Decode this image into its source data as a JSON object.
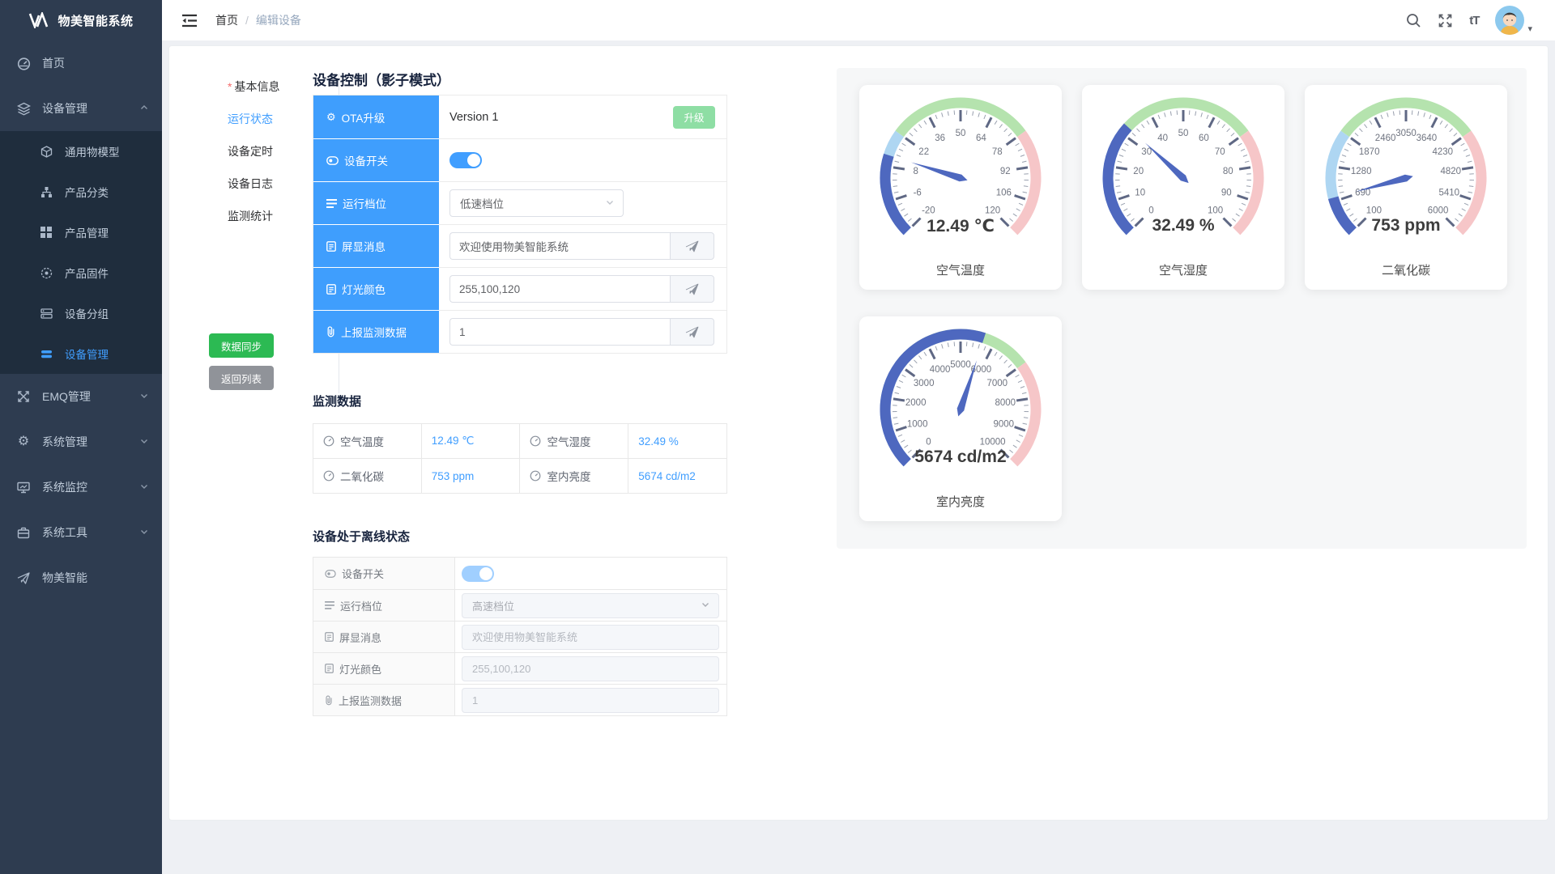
{
  "app": {
    "title": "物美智能系统"
  },
  "header": {
    "breadcrumb": {
      "home": "首页",
      "separator": "/",
      "current": "编辑设备"
    },
    "font_size_icon_text": "tT"
  },
  "sidebar": {
    "items": [
      {
        "label": "首页",
        "icon": "dashboard-icon"
      },
      {
        "label": "设备管理",
        "icon": "device-layers-icon",
        "expanded": true,
        "children": [
          {
            "label": "通用物模型",
            "icon": "cube-icon"
          },
          {
            "label": "产品分类",
            "icon": "sitemap-icon"
          },
          {
            "label": "产品管理",
            "icon": "grid-icon"
          },
          {
            "label": "产品固件",
            "icon": "firmware-icon"
          },
          {
            "label": "设备分组",
            "icon": "server-icon"
          },
          {
            "label": "设备管理",
            "icon": "bars-icon",
            "active": true
          }
        ]
      },
      {
        "label": "EMQ管理",
        "icon": "emq-icon"
      },
      {
        "label": "系统管理",
        "icon": "gear-icon"
      },
      {
        "label": "系统监控",
        "icon": "monitor-icon"
      },
      {
        "label": "系统工具",
        "icon": "toolbox-icon"
      },
      {
        "label": "物美智能",
        "icon": "paper-plane-icon"
      }
    ]
  },
  "tabs": [
    {
      "label": "基本信息",
      "required": "*"
    },
    {
      "label": "运行状态",
      "active": true
    },
    {
      "label": "设备定时"
    },
    {
      "label": "设备日志"
    },
    {
      "label": "监测统计"
    }
  ],
  "actions": {
    "sync": "数据同步",
    "back": "返回列表"
  },
  "shadow": {
    "title": "设备控制（影子模式）",
    "rows": [
      {
        "label": "OTA升级",
        "value": "Version 1",
        "button": "升级"
      },
      {
        "label": "设备开关",
        "switch_on": true
      },
      {
        "label": "运行档位",
        "select_value": "低速档位"
      },
      {
        "label": "屏显消息",
        "input_value": "欢迎使用物美智能系统"
      },
      {
        "label": "灯光颜色",
        "input_value": "255,100,120"
      },
      {
        "label": "上报监测数据",
        "input_value": "1"
      }
    ]
  },
  "monitor": {
    "title": "监测数据",
    "cells": [
      {
        "label": "空气温度",
        "value": "12.49 ℃"
      },
      {
        "label": "空气湿度",
        "value": "32.49 %"
      },
      {
        "label": "二氧化碳",
        "value": "753 ppm"
      },
      {
        "label": "室内亮度",
        "value": "5674 cd/m2"
      }
    ]
  },
  "offline": {
    "title": "设备处于离线状态",
    "rows": [
      {
        "label": "设备开关",
        "switch_on": true
      },
      {
        "label": "运行档位",
        "select_value": "高速档位"
      },
      {
        "label": "屏显消息",
        "placeholder": "欢迎使用物美智能系统"
      },
      {
        "label": "灯光颜色",
        "placeholder": "255,100,120"
      },
      {
        "label": "上报监测数据",
        "placeholder": "1"
      }
    ]
  },
  "chart_data": [
    {
      "type": "gauge",
      "title": "空气温度",
      "value": 12.49,
      "unit": "℃",
      "display": "12.49 ℃",
      "min": -20,
      "max": 120,
      "ticks": [
        -20,
        -6,
        8,
        22,
        36,
        50,
        64,
        78,
        92,
        106,
        120
      ]
    },
    {
      "type": "gauge",
      "title": "空气湿度",
      "value": 32.49,
      "unit": "%",
      "display": "32.49 %",
      "min": 0,
      "max": 100,
      "ticks": [
        0,
        10,
        20,
        30,
        40,
        50,
        60,
        70,
        80,
        90,
        100
      ]
    },
    {
      "type": "gauge",
      "title": "二氧化碳",
      "value": 753,
      "unit": "ppm",
      "display": "753 ppm",
      "min": 100,
      "max": 6000,
      "ticks": [
        100,
        690,
        1280,
        1870,
        2460,
        3050,
        3640,
        4230,
        4820,
        5410,
        6000
      ]
    },
    {
      "type": "gauge",
      "title": "室内亮度",
      "value": 5674,
      "unit": "cd/m2",
      "display": "5674 cd/m2",
      "min": 0,
      "max": 10000,
      "ticks": [
        0,
        1000,
        2000,
        3000,
        4000,
        5000,
        6000,
        7000,
        8000,
        9000,
        10000
      ]
    }
  ],
  "gauge_style": {
    "bands": [
      {
        "from": 0.0,
        "to": 0.3,
        "color": "#aed6f2"
      },
      {
        "from": 0.3,
        "to": 0.7,
        "color": "#b5e3ae"
      },
      {
        "from": 0.7,
        "to": 1.0,
        "color": "#f6c6c8"
      }
    ],
    "progress_color": "#4e68bf",
    "needle_color": "#4e68bf",
    "tick_color": "#5f6884",
    "minor_tick_color": "#99a0ae",
    "label_color": "#6f7480"
  },
  "theme": {
    "accent_blue": "#409eff",
    "label_cell_blue": "#3f9efd",
    "success_green": "#2cba53",
    "neutral_gray": "#909399",
    "sidebar_bg": "#2e3c50",
    "submenu_bg": "#1f2d3d"
  }
}
